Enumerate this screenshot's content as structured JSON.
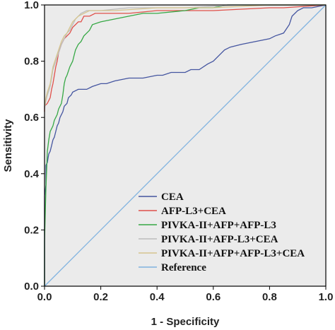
{
  "chart_data": {
    "type": "line",
    "xlabel": "1 - Specificity",
    "ylabel": "Sensitivity",
    "xlim": [
      0,
      1
    ],
    "ylim": [
      0,
      1
    ],
    "x_ticks": [
      {
        "value": 0,
        "label": "0.0"
      },
      {
        "value": 0.2,
        "label": "0.2"
      },
      {
        "value": 0.4,
        "label": "0.4"
      },
      {
        "value": 0.6,
        "label": "0.6"
      },
      {
        "value": 0.8,
        "label": "0.8"
      },
      {
        "value": 1,
        "label": "1.0"
      }
    ],
    "y_ticks": [
      {
        "value": 0,
        "label": "0.0"
      },
      {
        "value": 0.2,
        "label": "0.2"
      },
      {
        "value": 0.4,
        "label": "0.4"
      },
      {
        "value": 0.6,
        "label": "0.6"
      },
      {
        "value": 0.8,
        "label": "0.8"
      },
      {
        "value": 1,
        "label": "1.0"
      }
    ],
    "background": "#ebebeb",
    "legend_position": "bottom-center",
    "series": [
      {
        "name": "CEA",
        "color": "#4455a0",
        "points": [
          [
            0,
            0
          ],
          [
            0,
            0.32
          ],
          [
            0.005,
            0.36
          ],
          [
            0.005,
            0.43
          ],
          [
            0.01,
            0.44
          ],
          [
            0.015,
            0.47
          ],
          [
            0.02,
            0.48
          ],
          [
            0.025,
            0.5
          ],
          [
            0.03,
            0.52
          ],
          [
            0.035,
            0.53
          ],
          [
            0.04,
            0.55
          ],
          [
            0.045,
            0.57
          ],
          [
            0.05,
            0.58
          ],
          [
            0.055,
            0.6
          ],
          [
            0.06,
            0.61
          ],
          [
            0.065,
            0.62
          ],
          [
            0.07,
            0.64
          ],
          [
            0.08,
            0.65
          ],
          [
            0.085,
            0.67
          ],
          [
            0.095,
            0.68
          ],
          [
            0.1,
            0.69
          ],
          [
            0.12,
            0.7
          ],
          [
            0.15,
            0.7
          ],
          [
            0.17,
            0.71
          ],
          [
            0.2,
            0.72
          ],
          [
            0.22,
            0.72
          ],
          [
            0.25,
            0.73
          ],
          [
            0.3,
            0.74
          ],
          [
            0.35,
            0.74
          ],
          [
            0.4,
            0.75
          ],
          [
            0.42,
            0.75
          ],
          [
            0.45,
            0.76
          ],
          [
            0.5,
            0.76
          ],
          [
            0.52,
            0.77
          ],
          [
            0.55,
            0.77
          ],
          [
            0.58,
            0.79
          ],
          [
            0.6,
            0.8
          ],
          [
            0.62,
            0.82
          ],
          [
            0.64,
            0.84
          ],
          [
            0.66,
            0.85
          ],
          [
            0.7,
            0.86
          ],
          [
            0.75,
            0.87
          ],
          [
            0.8,
            0.88
          ],
          [
            0.82,
            0.89
          ],
          [
            0.85,
            0.9
          ],
          [
            0.87,
            0.93
          ],
          [
            0.88,
            0.96
          ],
          [
            0.9,
            0.98
          ],
          [
            0.92,
            0.99
          ],
          [
            0.95,
            0.99
          ],
          [
            1,
            1
          ]
        ]
      },
      {
        "name": "AFP-L3+CEA",
        "color": "#e0504a",
        "points": [
          [
            0,
            0.62
          ],
          [
            0,
            0.64
          ],
          [
            0.01,
            0.65
          ],
          [
            0.02,
            0.67
          ],
          [
            0.025,
            0.7
          ],
          [
            0.03,
            0.72
          ],
          [
            0.035,
            0.75
          ],
          [
            0.04,
            0.78
          ],
          [
            0.045,
            0.8
          ],
          [
            0.05,
            0.83
          ],
          [
            0.06,
            0.86
          ],
          [
            0.07,
            0.88
          ],
          [
            0.08,
            0.89
          ],
          [
            0.09,
            0.9
          ],
          [
            0.1,
            0.92
          ],
          [
            0.11,
            0.93
          ],
          [
            0.12,
            0.94
          ],
          [
            0.13,
            0.94
          ],
          [
            0.14,
            0.96
          ],
          [
            0.16,
            0.96
          ],
          [
            0.18,
            0.97
          ],
          [
            0.2,
            0.97
          ],
          [
            0.3,
            0.97
          ],
          [
            0.4,
            0.98
          ],
          [
            0.6,
            0.98
          ],
          [
            0.8,
            0.99
          ],
          [
            0.85,
            0.99
          ],
          [
            1,
            1
          ]
        ]
      },
      {
        "name": "PIVKA-II+AFP+AFP-L3",
        "color": "#36a845",
        "points": [
          [
            0,
            0
          ],
          [
            0,
            0.16
          ],
          [
            0.005,
            0.35
          ],
          [
            0.01,
            0.48
          ],
          [
            0.015,
            0.52
          ],
          [
            0.02,
            0.55
          ],
          [
            0.025,
            0.56
          ],
          [
            0.03,
            0.57
          ],
          [
            0.035,
            0.59
          ],
          [
            0.04,
            0.6
          ],
          [
            0.045,
            0.61
          ],
          [
            0.05,
            0.63
          ],
          [
            0.06,
            0.65
          ],
          [
            0.065,
            0.68
          ],
          [
            0.07,
            0.72
          ],
          [
            0.075,
            0.74
          ],
          [
            0.08,
            0.75
          ],
          [
            0.09,
            0.78
          ],
          [
            0.1,
            0.8
          ],
          [
            0.105,
            0.82
          ],
          [
            0.11,
            0.84
          ],
          [
            0.12,
            0.86
          ],
          [
            0.13,
            0.87
          ],
          [
            0.14,
            0.89
          ],
          [
            0.15,
            0.9
          ],
          [
            0.16,
            0.91
          ],
          [
            0.17,
            0.93
          ],
          [
            0.2,
            0.94
          ],
          [
            0.25,
            0.95
          ],
          [
            0.3,
            0.96
          ],
          [
            0.35,
            0.97
          ],
          [
            0.4,
            0.97
          ],
          [
            0.5,
            0.98
          ],
          [
            0.55,
            0.99
          ],
          [
            0.6,
            0.99
          ],
          [
            0.65,
            1
          ],
          [
            1,
            1
          ]
        ]
      },
      {
        "name": "PIVKA-II+AFP-L3+CEA",
        "color": "#bcbcbc",
        "points": [
          [
            0,
            0.63
          ],
          [
            0.005,
            0.66
          ],
          [
            0.01,
            0.68
          ],
          [
            0.02,
            0.71
          ],
          [
            0.025,
            0.74
          ],
          [
            0.03,
            0.77
          ],
          [
            0.04,
            0.8
          ],
          [
            0.05,
            0.83
          ],
          [
            0.06,
            0.86
          ],
          [
            0.07,
            0.88
          ],
          [
            0.08,
            0.9
          ],
          [
            0.09,
            0.91
          ],
          [
            0.1,
            0.93
          ],
          [
            0.11,
            0.95
          ],
          [
            0.12,
            0.96
          ],
          [
            0.13,
            0.97
          ],
          [
            0.15,
            0.98
          ],
          [
            0.2,
            0.98
          ],
          [
            0.3,
            0.99
          ],
          [
            0.5,
            0.99
          ],
          [
            0.7,
            1
          ],
          [
            1,
            1
          ]
        ]
      },
      {
        "name": "PIVKA-II+AFP+AFP-L3+CEA",
        "color": "#d6c58f",
        "points": [
          [
            0,
            0.64
          ],
          [
            0.005,
            0.67
          ],
          [
            0.01,
            0.69
          ],
          [
            0.02,
            0.72
          ],
          [
            0.025,
            0.75
          ],
          [
            0.03,
            0.78
          ],
          [
            0.04,
            0.81
          ],
          [
            0.05,
            0.84
          ],
          [
            0.06,
            0.87
          ],
          [
            0.07,
            0.89
          ],
          [
            0.08,
            0.9
          ],
          [
            0.09,
            0.92
          ],
          [
            0.1,
            0.94
          ],
          [
            0.11,
            0.95
          ],
          [
            0.12,
            0.96
          ],
          [
            0.14,
            0.97
          ],
          [
            0.16,
            0.98
          ],
          [
            0.25,
            0.98
          ],
          [
            0.4,
            0.99
          ],
          [
            0.6,
            0.99
          ],
          [
            0.8,
            1
          ],
          [
            1,
            1
          ]
        ]
      },
      {
        "name": "Reference",
        "color": "#7fb2e0",
        "points": [
          [
            0,
            0
          ],
          [
            1,
            1
          ]
        ]
      }
    ]
  }
}
